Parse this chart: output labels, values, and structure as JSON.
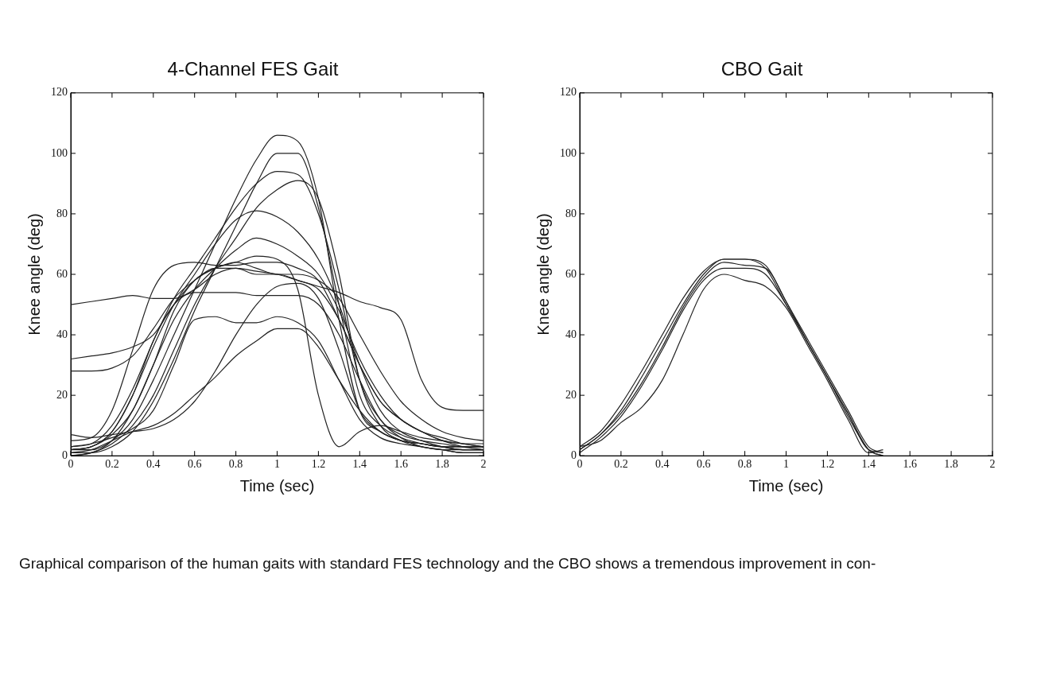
{
  "chart_data": [
    {
      "type": "line",
      "title": "4-Channel FES Gait",
      "xlabel": "Time (sec)",
      "ylabel": "Knee angle (deg)",
      "xlim": [
        0,
        2
      ],
      "xticks": [
        0,
        0.2,
        0.4,
        0.6,
        0.8,
        1,
        1.2,
        1.4,
        1.6,
        1.8,
        2
      ],
      "ylim": [
        0,
        120
      ],
      "yticks": [
        0,
        20,
        40,
        60,
        80,
        100,
        120
      ],
      "grid": false,
      "marker": "none",
      "line_style": "solid",
      "x": [
        0,
        0.1,
        0.2,
        0.3,
        0.4,
        0.5,
        0.6,
        0.7,
        0.8,
        0.9,
        1,
        1.1,
        1.2,
        1.3,
        1.4,
        1.5,
        1.6,
        1.7,
        1.8,
        1.9,
        2
      ],
      "series": [
        {
          "color": "#222222",
          "values": [
            2,
            2,
            5,
            12,
            25,
            40,
            55,
            70,
            85,
            98,
            106,
            104,
            85,
            45,
            15,
            8,
            5,
            4,
            3,
            3,
            3
          ]
        },
        {
          "color": "#222222",
          "values": [
            1,
            1,
            3,
            8,
            18,
            32,
            48,
            62,
            76,
            90,
            100,
            100,
            82,
            50,
            20,
            10,
            6,
            4,
            3,
            2,
            2
          ]
        },
        {
          "color": "#222222",
          "values": [
            3,
            4,
            10,
            22,
            38,
            52,
            62,
            72,
            82,
            90,
            94,
            93,
            80,
            55,
            25,
            12,
            7,
            5,
            4,
            3,
            3
          ]
        },
        {
          "color": "#222222",
          "values": [
            0,
            1,
            4,
            10,
            20,
            35,
            50,
            62,
            72,
            82,
            88,
            91,
            85,
            60,
            25,
            10,
            5,
            3,
            2,
            1,
            1
          ]
        },
        {
          "color": "#222222",
          "values": [
            2,
            3,
            8,
            20,
            36,
            50,
            60,
            70,
            78,
            81,
            79,
            74,
            65,
            50,
            30,
            15,
            8,
            5,
            3,
            2,
            2
          ]
        },
        {
          "color": "#222222",
          "values": [
            5,
            6,
            15,
            35,
            55,
            63,
            64,
            63,
            63,
            64,
            64,
            62,
            58,
            45,
            30,
            18,
            12,
            8,
            6,
            4,
            3
          ]
        },
        {
          "color": "#222222",
          "values": [
            2,
            3,
            8,
            20,
            38,
            50,
            54,
            54,
            54,
            53,
            53,
            53,
            50,
            40,
            25,
            12,
            6,
            3,
            2,
            1,
            1
          ]
        },
        {
          "color": "#222222",
          "values": [
            50,
            51,
            52,
            53,
            52,
            52,
            55,
            60,
            62,
            61,
            60,
            58,
            56,
            54,
            51,
            49,
            45,
            25,
            16,
            15,
            15
          ]
        },
        {
          "color": "#222222",
          "values": [
            32,
            33,
            34,
            36,
            40,
            50,
            58,
            62,
            64,
            62,
            60,
            60,
            58,
            52,
            40,
            28,
            18,
            12,
            8,
            6,
            5
          ]
        },
        {
          "color": "#222222",
          "values": [
            28,
            28,
            29,
            33,
            42,
            52,
            58,
            62,
            62,
            60,
            60,
            58,
            55,
            45,
            30,
            18,
            12,
            8,
            5,
            4,
            3
          ]
        },
        {
          "color": "#222222",
          "values": [
            1,
            2,
            5,
            8,
            10,
            14,
            20,
            26,
            33,
            38,
            42,
            42,
            36,
            25,
            15,
            8,
            5,
            4,
            3,
            3,
            3
          ]
        },
        {
          "color": "#222222",
          "values": [
            3,
            4,
            6,
            9,
            15,
            30,
            45,
            46,
            44,
            44,
            46,
            44,
            38,
            25,
            12,
            6,
            4,
            3,
            2,
            2,
            2
          ]
        },
        {
          "color": "#222222",
          "values": [
            2,
            3,
            7,
            15,
            30,
            48,
            58,
            62,
            64,
            66,
            65,
            55,
            20,
            3,
            8,
            10,
            8,
            6,
            5,
            4,
            4
          ]
        },
        {
          "color": "#222222",
          "values": [
            7,
            6,
            7,
            8,
            9,
            12,
            18,
            28,
            40,
            50,
            56,
            57,
            52,
            35,
            15,
            8,
            5,
            4,
            3,
            2,
            2
          ]
        },
        {
          "color": "#222222",
          "values": [
            0,
            1,
            5,
            15,
            30,
            45,
            55,
            62,
            68,
            72,
            70,
            66,
            60,
            48,
            32,
            20,
            12,
            8,
            5,
            3,
            2
          ]
        }
      ]
    },
    {
      "type": "line",
      "title": "CBO Gait",
      "xlabel": "Time (sec)",
      "ylabel": "Knee angle (deg)",
      "xlim": [
        0,
        2
      ],
      "xticks": [
        0,
        0.2,
        0.4,
        0.6,
        0.8,
        1,
        1.2,
        1.4,
        1.6,
        1.8,
        2
      ],
      "ylim": [
        0,
        120
      ],
      "yticks": [
        0,
        20,
        40,
        60,
        80,
        100,
        120
      ],
      "grid": false,
      "marker": "none",
      "line_style": "solid",
      "x": [
        0,
        0.1,
        0.2,
        0.3,
        0.4,
        0.5,
        0.6,
        0.7,
        0.8,
        0.9,
        1,
        1.1,
        1.2,
        1.3,
        1.4,
        1.47
      ],
      "series": [
        {
          "color": "#222222",
          "values": [
            2,
            7,
            15,
            26,
            38,
            50,
            60,
            65,
            65,
            62,
            50,
            38,
            26,
            14,
            2,
            1
          ]
        },
        {
          "color": "#222222",
          "values": [
            1,
            6,
            13,
            23,
            35,
            48,
            58,
            62,
            62,
            60,
            50,
            38,
            26,
            13,
            2,
            0
          ]
        },
        {
          "color": "#222222",
          "values": [
            3,
            5,
            11,
            16,
            25,
            40,
            55,
            60,
            58,
            56,
            49,
            37,
            25,
            12,
            1,
            2
          ]
        },
        {
          "color": "#222222",
          "values": [
            3,
            8,
            17,
            28,
            40,
            52,
            61,
            65,
            65,
            63,
            51,
            39,
            27,
            15,
            3,
            1
          ]
        },
        {
          "color": "#222222",
          "values": [
            2,
            7,
            14,
            24,
            36,
            49,
            59,
            64,
            63,
            62,
            51,
            38,
            26,
            14,
            2,
            0
          ]
        }
      ],
      "annotations": [
        "Graphical comparison of the human gaits with standard FES technology and the CBO shows a tremendous improvement in con-"
      ]
    }
  ]
}
